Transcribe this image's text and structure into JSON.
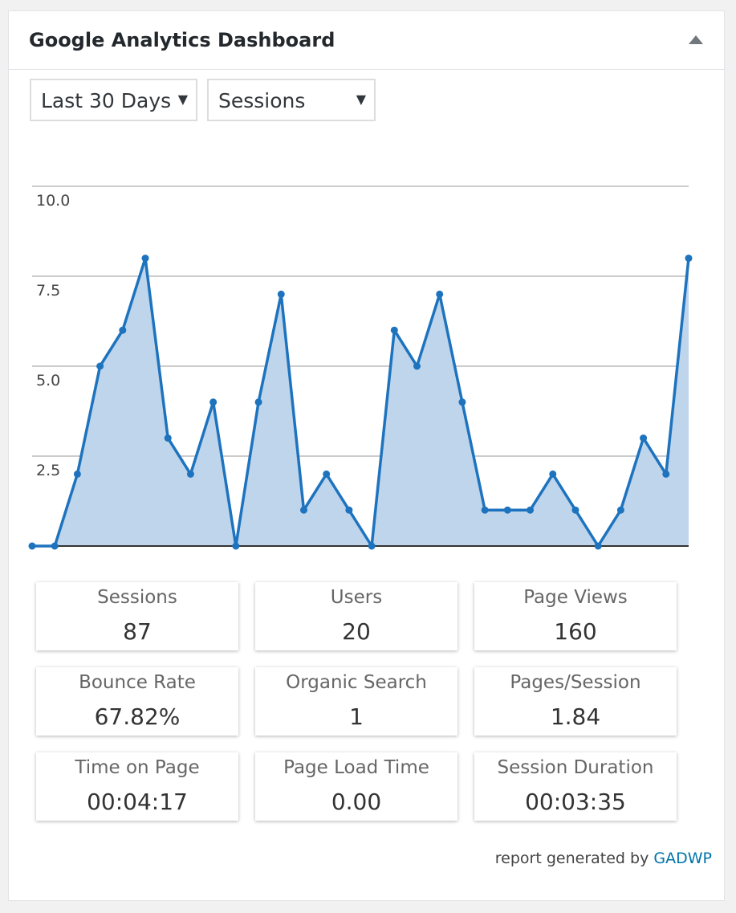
{
  "header": {
    "title": "Google Analytics Dashboard"
  },
  "controls": {
    "period": "Last 30 Days",
    "metric": "Sessions"
  },
  "chart_data": {
    "type": "line",
    "area": true,
    "color": "#1e73be",
    "fill": "#bed5ec",
    "values": [
      0,
      0,
      2,
      5,
      6,
      8,
      3,
      2,
      4,
      0,
      4,
      7,
      1,
      2,
      1,
      0,
      6,
      5,
      7,
      4,
      1,
      1,
      1,
      2,
      1,
      0,
      1,
      3,
      2,
      8
    ],
    "ylim": [
      0,
      10
    ],
    "yticks": [
      {
        "value": 2.5,
        "label": "2.5"
      },
      {
        "value": 5,
        "label": "5.0"
      },
      {
        "value": 7.5,
        "label": "7.5"
      },
      {
        "value": 10,
        "label": "10.0"
      }
    ],
    "grid": true
  },
  "stats": [
    {
      "label": "Sessions",
      "value": "87"
    },
    {
      "label": "Users",
      "value": "20"
    },
    {
      "label": "Page Views",
      "value": "160"
    },
    {
      "label": "Bounce Rate",
      "value": "67.82%"
    },
    {
      "label": "Organic Search",
      "value": "1"
    },
    {
      "label": "Pages/Session",
      "value": "1.84"
    },
    {
      "label": "Time on Page",
      "value": "00:04:17"
    },
    {
      "label": "Page Load Time",
      "value": "0.00"
    },
    {
      "label": "Session Duration",
      "value": "00:03:35"
    }
  ],
  "footer": {
    "text": "report generated by",
    "link": "GADWP"
  }
}
